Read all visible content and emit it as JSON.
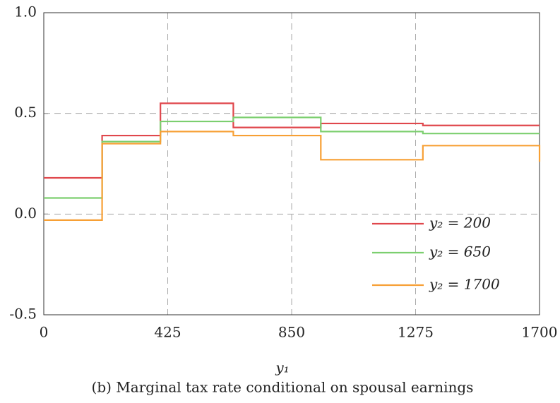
{
  "chart_data": {
    "type": "step",
    "x_label": "y₁",
    "caption": "(b) Marginal tax rate conditional on spousal earnings",
    "x": [
      0,
      200,
      400,
      650,
      950,
      1300,
      1700
    ],
    "series": [
      {
        "name": "y₂ = 200",
        "color": "#e0474c",
        "values": [
          0.18,
          0.39,
          0.55,
          0.43,
          0.45,
          0.44,
          0.44
        ]
      },
      {
        "name": "y₂ = 650",
        "color": "#7ccf6f",
        "values": [
          0.08,
          0.36,
          0.46,
          0.48,
          0.41,
          0.4,
          0.4
        ]
      },
      {
        "name": "y₂ = 1700",
        "color": "#f7a035",
        "values": [
          -0.03,
          0.35,
          0.41,
          0.39,
          0.27,
          0.34,
          0.26
        ]
      }
    ],
    "xlim": [
      0,
      1700
    ],
    "xticks": [
      0,
      425,
      850,
      1275,
      1700
    ],
    "ylim": [
      -0.5,
      1.0
    ],
    "yticks": [
      -0.5,
      {
        "value": 0.0,
        "label": "0.0"
      },
      0.5,
      {
        "value": 1.0,
        "label": "1.0"
      }
    ],
    "grid": true,
    "legend": "lower-right"
  }
}
